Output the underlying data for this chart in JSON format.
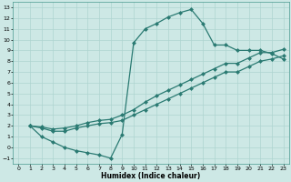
{
  "xlabel": "Humidex (Indice chaleur)",
  "xlim": [
    -0.5,
    23.5
  ],
  "ylim": [
    -1.5,
    13.5
  ],
  "xticks": [
    0,
    1,
    2,
    3,
    4,
    5,
    6,
    7,
    8,
    9,
    10,
    11,
    12,
    13,
    14,
    15,
    16,
    17,
    18,
    19,
    20,
    21,
    22,
    23
  ],
  "yticks": [
    -1,
    0,
    1,
    2,
    3,
    4,
    5,
    6,
    7,
    8,
    9,
    10,
    11,
    12,
    13
  ],
  "bg_color": "#cde8e5",
  "grid_color": "#aed4d0",
  "line_color": "#2a7a72",
  "line1_x": [
    1,
    2,
    3,
    4,
    5,
    6,
    7,
    8,
    9,
    10,
    11,
    12,
    13,
    14,
    15,
    16,
    17,
    18,
    19,
    20,
    21,
    22,
    23
  ],
  "line1_y": [
    2,
    1,
    0.5,
    0,
    -0.3,
    -0.5,
    -0.7,
    -1,
    1.2,
    9.7,
    11,
    11.5,
    12.1,
    12.5,
    12.8,
    11.5,
    9.5,
    9.5,
    9,
    9,
    9,
    8.7,
    8.2
  ],
  "line2_x": [
    1,
    2,
    3,
    4,
    5,
    6,
    7,
    8,
    9,
    10,
    11,
    12,
    13,
    14,
    15,
    16,
    17,
    18,
    19,
    20,
    21,
    22,
    23
  ],
  "line2_y": [
    2,
    1.8,
    1.5,
    1.5,
    1.8,
    2,
    2.2,
    2.3,
    2.5,
    3,
    3.5,
    4,
    4.5,
    5,
    5.5,
    6,
    6.5,
    7,
    7,
    7.5,
    8,
    8.2,
    8.5
  ],
  "line3_x": [
    1,
    2,
    3,
    4,
    5,
    6,
    7,
    8,
    9,
    10,
    11,
    12,
    13,
    14,
    15,
    16,
    17,
    18,
    19,
    20,
    21,
    22,
    23
  ],
  "line3_y": [
    2,
    1.9,
    1.7,
    1.8,
    2,
    2.3,
    2.5,
    2.6,
    3,
    3.5,
    4.2,
    4.8,
    5.3,
    5.8,
    6.3,
    6.8,
    7.3,
    7.8,
    7.8,
    8.3,
    8.8,
    8.8,
    9.1
  ],
  "markersize": 2.5,
  "linewidth": 0.9
}
